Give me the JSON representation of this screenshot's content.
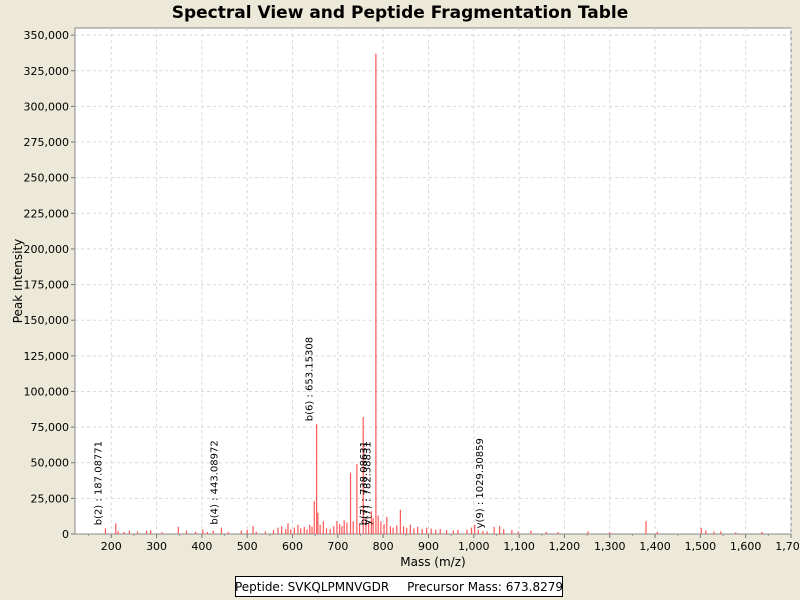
{
  "chart_data": {
    "type": "bar",
    "title": "Spectral View and Peptide Fragmentation Table",
    "xlabel": "Mass (m/z)",
    "ylabel": "Peak Intensity",
    "xlim": [
      120,
      1700
    ],
    "ylim": [
      0,
      355000
    ],
    "xticks": [
      200,
      300,
      400,
      500,
      600,
      700,
      800,
      900,
      1000,
      1100,
      1200,
      1300,
      1400,
      1500,
      1600,
      1700
    ],
    "xtick_labels": [
      "200",
      "300",
      "400",
      "500",
      "600",
      "700",
      "800",
      "900",
      "1,000",
      "1,100",
      "1,200",
      "1,300",
      "1,400",
      "1,500",
      "1,600",
      "1,700"
    ],
    "yticks": [
      0,
      25000,
      50000,
      75000,
      100000,
      125000,
      150000,
      175000,
      200000,
      225000,
      250000,
      275000,
      300000,
      325000,
      350000
    ],
    "ytick_labels": [
      "0",
      "25,000",
      "50,000",
      "75,000",
      "100,000",
      "125,000",
      "150,000",
      "175,000",
      "200,000",
      "225,000",
      "250,000",
      "275,000",
      "300,000",
      "325,000",
      "350,000"
    ],
    "grid": true,
    "peak_color": "#FF5555",
    "peaks": [
      [
        187.1,
        4000
      ],
      [
        210,
        7500
      ],
      [
        215,
        2000
      ],
      [
        228,
        1500
      ],
      [
        240,
        2500
      ],
      [
        258,
        1800
      ],
      [
        278,
        2200
      ],
      [
        287,
        2600
      ],
      [
        312,
        1200
      ],
      [
        348,
        5000
      ],
      [
        366,
        2400
      ],
      [
        386,
        1500
      ],
      [
        402,
        3200
      ],
      [
        412,
        1400
      ],
      [
        425,
        2300
      ],
      [
        443.1,
        4500
      ],
      [
        458,
        1500
      ],
      [
        487,
        2400
      ],
      [
        500,
        3000
      ],
      [
        513,
        5500
      ],
      [
        520,
        1600
      ],
      [
        540,
        1800
      ],
      [
        558,
        2800
      ],
      [
        568,
        4500
      ],
      [
        576,
        5500
      ],
      [
        585,
        3500
      ],
      [
        590,
        7500
      ],
      [
        596,
        3200
      ],
      [
        604,
        4500
      ],
      [
        612,
        6500
      ],
      [
        618,
        4000
      ],
      [
        626,
        5000
      ],
      [
        632,
        3200
      ],
      [
        638,
        6500
      ],
      [
        643,
        5000
      ],
      [
        648,
        23000
      ],
      [
        653.2,
        77000
      ],
      [
        656,
        15000
      ],
      [
        661,
        6500
      ],
      [
        668,
        9000
      ],
      [
        675,
        4000
      ],
      [
        683,
        3500
      ],
      [
        691,
        5500
      ],
      [
        698,
        9000
      ],
      [
        704,
        7000
      ],
      [
        709,
        5500
      ],
      [
        714,
        9500
      ],
      [
        720,
        8000
      ],
      [
        728,
        43000
      ],
      [
        734,
        9000
      ],
      [
        742,
        49000
      ],
      [
        748,
        7500
      ],
      [
        756,
        82000
      ],
      [
        762,
        11000
      ],
      [
        768,
        8000
      ],
      [
        774,
        16000
      ],
      [
        778,
        11000
      ],
      [
        784,
        337000
      ],
      [
        789,
        13000
      ],
      [
        795,
        9000
      ],
      [
        802,
        7000
      ],
      [
        808,
        12000
      ],
      [
        816,
        5500
      ],
      [
        822,
        4500
      ],
      [
        830,
        6000
      ],
      [
        838,
        17000
      ],
      [
        845,
        5500
      ],
      [
        852,
        4500
      ],
      [
        860,
        6500
      ],
      [
        868,
        4000
      ],
      [
        876,
        5000
      ],
      [
        886,
        3500
      ],
      [
        896,
        4500
      ],
      [
        906,
        3800
      ],
      [
        916,
        3000
      ],
      [
        926,
        3500
      ],
      [
        940,
        2800
      ],
      [
        955,
        2500
      ],
      [
        965,
        3000
      ],
      [
        985,
        3000
      ],
      [
        995,
        4500
      ],
      [
        1002,
        6500
      ],
      [
        1010,
        3000
      ],
      [
        1020,
        2200
      ],
      [
        1029.3,
        1800
      ],
      [
        1045,
        5000
      ],
      [
        1057,
        5500
      ],
      [
        1066,
        3500
      ],
      [
        1084,
        2800
      ],
      [
        1098,
        1800
      ],
      [
        1126,
        2200
      ],
      [
        1160,
        1500
      ],
      [
        1186,
        1300
      ],
      [
        1252,
        1800
      ],
      [
        1300,
        1200
      ],
      [
        1380,
        9000
      ],
      [
        1405,
        1500
      ],
      [
        1502,
        4200
      ],
      [
        1512,
        2500
      ],
      [
        1530,
        1800
      ],
      [
        1545,
        1800
      ],
      [
        1578,
        1200
      ],
      [
        1636,
        1500
      ]
    ],
    "annotations": [
      {
        "x": 187.1,
        "y": 4000,
        "label": "b(2) : 187.08771"
      },
      {
        "x": 443.1,
        "y": 4500,
        "label": "b(4) : 443.08972"
      },
      {
        "x": 653.2,
        "y": 77000,
        "label": "b(6) : 653.15308"
      },
      {
        "x": 773.5,
        "y": 4000,
        "label": "b(7) : 738.08631"
      },
      {
        "x": 780.5,
        "y": 4000,
        "label": "y(7) : 782.38831"
      },
      {
        "x": 1029.3,
        "y": 1800,
        "label": "y(9) : 1029.30859"
      }
    ]
  },
  "info": {
    "peptide": "Peptide: SVKQLPMNVGDR",
    "precursor": "Precursor Mass: 673.8279"
  }
}
